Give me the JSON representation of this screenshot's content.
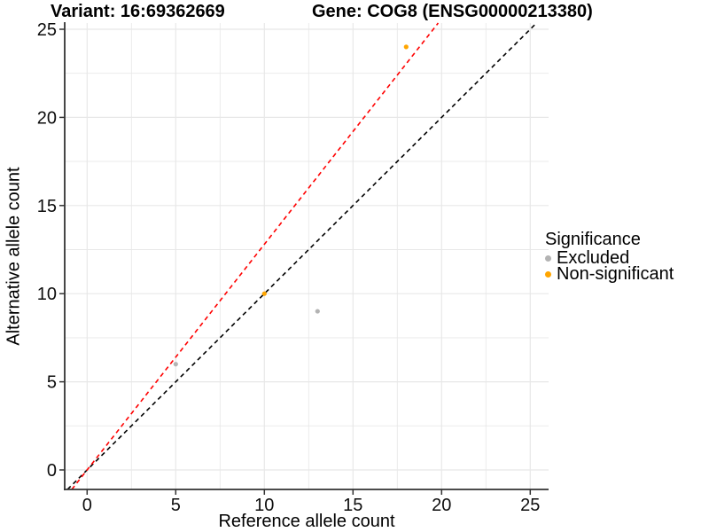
{
  "chart_data": {
    "type": "scatter",
    "title_left": "Variant: 16:69362669",
    "title_right": "Gene: COG8 (ENSG00000213380)",
    "xlabel": "Reference allele count",
    "ylabel": "Alternative allele count",
    "xlim": [
      0,
      25
    ],
    "ylim": [
      0,
      25
    ],
    "x_ticks": [
      0,
      5,
      10,
      15,
      20,
      25
    ],
    "y_ticks": [
      0,
      5,
      10,
      15,
      20,
      25
    ],
    "grid": "major+minor",
    "background": "#ffffff",
    "gridline_color": "#e8e8e8",
    "axis_line_color": "#333333",
    "series": [
      {
        "name": "Excluded",
        "color": "#b3b3b3",
        "points": [
          [
            5,
            6
          ],
          [
            13,
            9
          ]
        ]
      },
      {
        "name": "Non-significant",
        "color": "#ffa500",
        "points": [
          [
            10,
            10
          ],
          [
            18,
            24
          ]
        ]
      }
    ],
    "ablines": [
      {
        "name": "identity-line",
        "slope": 1,
        "intercept": 0,
        "color": "#000000",
        "style": "dashed"
      },
      {
        "name": "allelic-ratio-line",
        "slope": 1.28,
        "intercept": 0,
        "color": "#ff0000",
        "style": "dashed"
      }
    ],
    "legend": {
      "title": "Significance",
      "position": "right",
      "entries": [
        {
          "label": "Excluded",
          "color": "#b3b3b3"
        },
        {
          "label": "Non-significant",
          "color": "#ffa500"
        }
      ]
    }
  }
}
